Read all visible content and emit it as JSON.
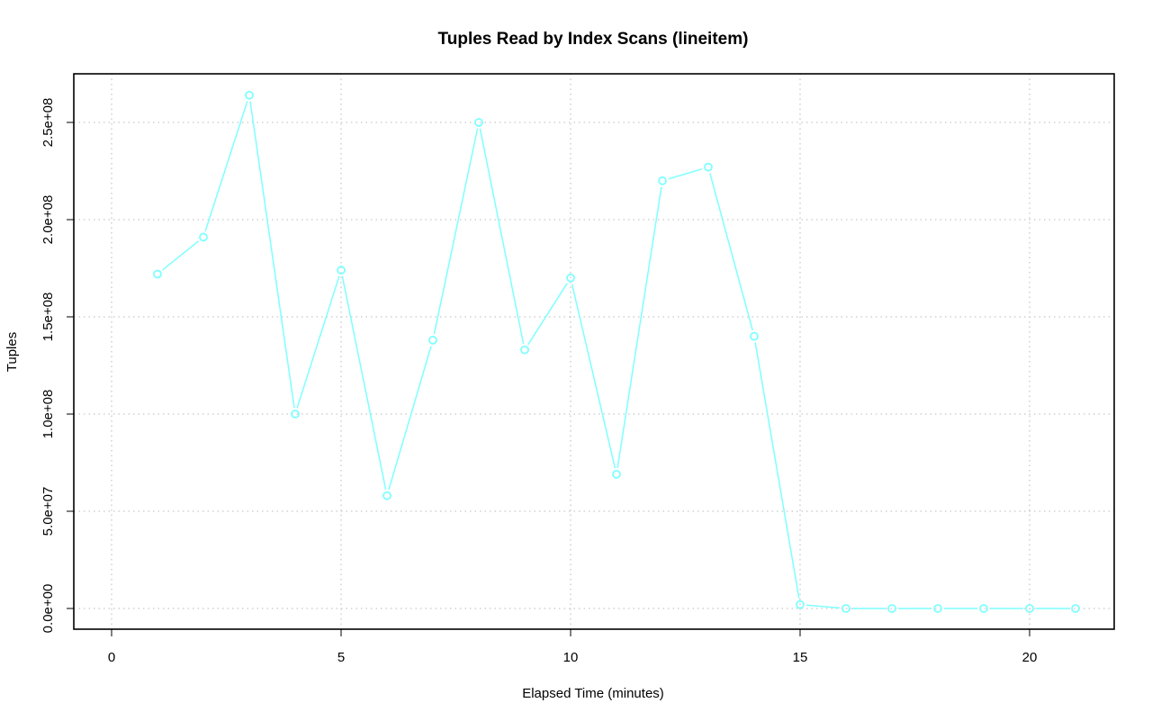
{
  "chart_data": {
    "type": "line",
    "title": "Tuples Read by Index Scans (lineitem)",
    "xlabel": "Elapsed Time (minutes)",
    "ylabel": "Tuples",
    "xlim": [
      0,
      21
    ],
    "ylim": [
      0,
      264000000
    ],
    "x_ticks": [
      0,
      5,
      10,
      15,
      20
    ],
    "x_tick_labels": [
      "0",
      "5",
      "10",
      "15",
      "20"
    ],
    "y_ticks": [
      0,
      50000000,
      100000000,
      150000000,
      200000000,
      250000000
    ],
    "y_tick_labels": [
      "0.0e+00",
      "5.0e+07",
      "1.0e+08",
      "1.5e+08",
      "2.0e+08",
      "2.5e+08"
    ],
    "grid": true,
    "series": [
      {
        "color": "#7fffff",
        "marker": "open-circle",
        "x": [
          1,
          2,
          3,
          4,
          5,
          6,
          7,
          8,
          9,
          10,
          11,
          12,
          13,
          14,
          15,
          16,
          17,
          18,
          19,
          20,
          21
        ],
        "values": [
          172000000,
          191000000,
          264000000,
          100000000,
          174000000,
          58000000,
          138000000,
          250000000,
          133000000,
          170000000,
          69000000,
          220000000,
          227000000,
          140000000,
          2000000,
          0,
          0,
          0,
          0,
          0,
          0
        ]
      }
    ]
  }
}
